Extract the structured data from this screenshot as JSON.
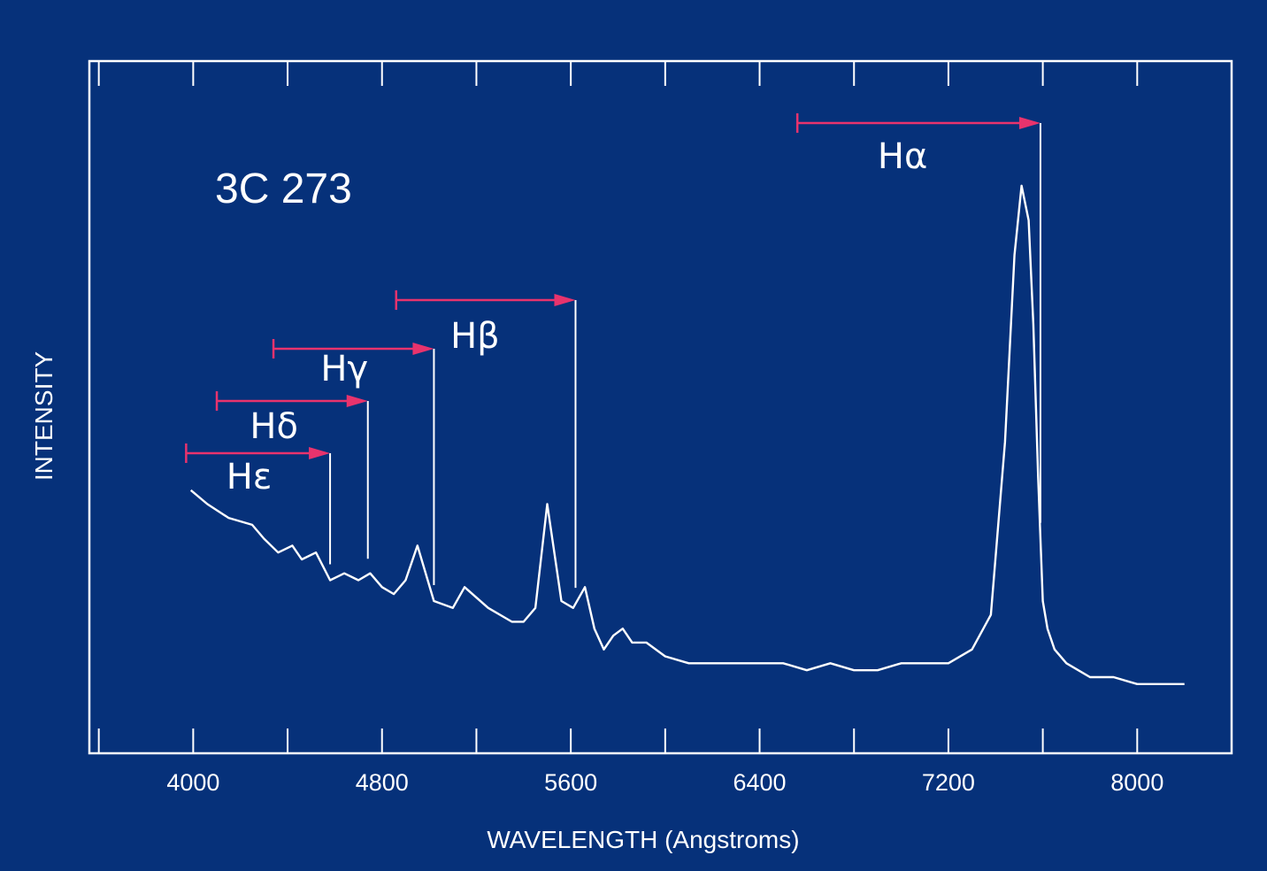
{
  "chart_data": {
    "type": "line",
    "title": "3C 273",
    "xlabel": "WAVELENGTH (Angstroms)",
    "ylabel": "INTENSITY",
    "xlim": [
      3560,
      8400
    ],
    "ylim": [
      0,
      100
    ],
    "xticks": [
      4000,
      4800,
      5600,
      6400,
      7200,
      8000
    ],
    "grid": false,
    "legend": "none",
    "colors": {
      "background": "#06317a",
      "trace": "#ffffff",
      "shift_arrow": "#e8336d"
    },
    "series": [
      {
        "x": [
          3990,
          4060,
          4150,
          4250,
          4300,
          4360,
          4420,
          4460,
          4520,
          4580,
          4640,
          4700,
          4750,
          4800,
          4850,
          4900,
          4950,
          5020,
          5100,
          5150,
          5250,
          5350,
          5400,
          5450,
          5500,
          5560,
          5610,
          5660,
          5700,
          5740,
          5780,
          5820,
          5860,
          5920,
          6000,
          6100,
          6200,
          6300,
          6400,
          6500,
          6600,
          6700,
          6800,
          6900,
          7000,
          7100,
          7200,
          7300,
          7380,
          7440,
          7480,
          7510,
          7540,
          7560,
          7580,
          7600,
          7620,
          7650,
          7700,
          7800,
          7900,
          8000,
          8050,
          8200
        ],
        "y": [
          38,
          36,
          34,
          33,
          31,
          29,
          30,
          28,
          29,
          25,
          26,
          25,
          26,
          24,
          23,
          25,
          30,
          22,
          21,
          24,
          21,
          19,
          19,
          21,
          36,
          22,
          21,
          24,
          18,
          15,
          17,
          18,
          16,
          16,
          14,
          13,
          13,
          13,
          13,
          13,
          12,
          13,
          12,
          12,
          13,
          13,
          13,
          15,
          20,
          45,
          72,
          82,
          77,
          62,
          40,
          22,
          18,
          15,
          13,
          11,
          11,
          10,
          10,
          10
        ]
      }
    ],
    "annotations": [
      {
        "label": "Hε",
        "rest_wavelength": 3970,
        "observed_wavelength": 4580,
        "label_wavelength": 4140
      },
      {
        "label": "Hδ",
        "rest_wavelength": 4100,
        "observed_wavelength": 4740,
        "label_wavelength": 4240
      },
      {
        "label": "Hγ",
        "rest_wavelength": 4340,
        "observed_wavelength": 5020,
        "label_wavelength": 4540
      },
      {
        "label": "Hβ",
        "rest_wavelength": 4860,
        "observed_wavelength": 5620,
        "label_wavelength": 5090
      },
      {
        "label": "Hα",
        "rest_wavelength": 6560,
        "observed_wavelength": 7590,
        "label_wavelength": 6900
      }
    ]
  }
}
